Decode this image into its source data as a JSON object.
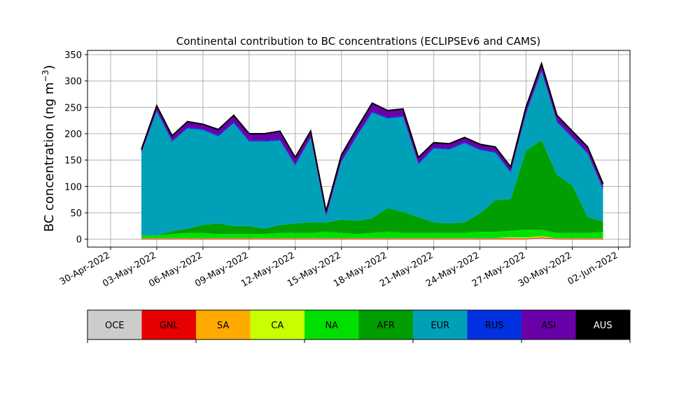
{
  "chart_data": {
    "type": "area",
    "stacked": true,
    "title": "Continental contribution to BC concentrations (ECLIPSEv6 and CAMS)",
    "xlabel": "",
    "ylabel": "BC concentration (ng m",
    "ylabel_superscript": "−3",
    "ylabel_close": ")",
    "ylim": [
      -15,
      358
    ],
    "xlim": [
      "2022-04-30",
      "2022-06-02"
    ],
    "grid": true,
    "x_ticks": [
      "30-Apr-2022",
      "03-May-2022",
      "06-May-2022",
      "09-May-2022",
      "12-May-2022",
      "15-May-2022",
      "18-May-2022",
      "21-May-2022",
      "24-May-2022",
      "27-May-2022",
      "30-May-2022",
      "02-Jun-2022"
    ],
    "y_ticks": [
      "0",
      "50",
      "100",
      "150",
      "200",
      "250",
      "300",
      "350"
    ],
    "y_tick_values": [
      0,
      50,
      100,
      150,
      200,
      250,
      300,
      350
    ],
    "legend_placement": "colorbar below chart",
    "x": [
      "2022-05-02",
      "2022-05-03",
      "2022-05-04",
      "2022-05-05",
      "2022-05-06",
      "2022-05-07",
      "2022-05-08",
      "2022-05-09",
      "2022-05-10",
      "2022-05-11",
      "2022-05-12",
      "2022-05-13",
      "2022-05-14",
      "2022-05-15",
      "2022-05-16",
      "2022-05-17",
      "2022-05-18",
      "2022-05-19",
      "2022-05-20",
      "2022-05-21",
      "2022-05-22",
      "2022-05-23",
      "2022-05-24",
      "2022-05-25",
      "2022-05-26",
      "2022-05-27",
      "2022-05-28",
      "2022-05-29",
      "2022-05-30",
      "2022-05-31",
      "2022-06-01"
    ],
    "series": [
      {
        "name": "OCE",
        "color": "#cccccc",
        "values": [
          0,
          0,
          0,
          0,
          0,
          0,
          0,
          0,
          0,
          0,
          0,
          0,
          0,
          0,
          0,
          0,
          0,
          0,
          0,
          0,
          0,
          0,
          0,
          0,
          0,
          0,
          2,
          0,
          0,
          0,
          0
        ]
      },
      {
        "name": "GNL",
        "color": "#e60000",
        "values": [
          1,
          1,
          1,
          1,
          1,
          1,
          1,
          1,
          1,
          1,
          1,
          1,
          1,
          1,
          1,
          1,
          1,
          1,
          1,
          1,
          1,
          1,
          1,
          1,
          1,
          1,
          1,
          1,
          1,
          1,
          1
        ]
      },
      {
        "name": "SA",
        "color": "#ffaa00",
        "values": [
          1,
          1,
          1,
          1,
          1,
          1,
          1,
          1,
          1,
          1,
          1,
          1,
          1,
          1,
          1,
          1,
          1,
          1,
          1,
          1,
          1,
          1,
          1,
          1,
          2,
          1,
          2,
          1,
          1,
          1,
          1
        ]
      },
      {
        "name": "CA",
        "color": "#c8ff00",
        "values": [
          0,
          0,
          0,
          0,
          0,
          0,
          0,
          0,
          0,
          0,
          0,
          0,
          0,
          0,
          0,
          0,
          0,
          0,
          0,
          0,
          0,
          0,
          0,
          0,
          1,
          1,
          1,
          0,
          0,
          0,
          0
        ]
      },
      {
        "name": "NA",
        "color": "#00e000",
        "values": [
          6,
          5,
          8,
          10,
          10,
          8,
          8,
          8,
          8,
          10,
          10,
          10,
          12,
          10,
          8,
          10,
          12,
          10,
          10,
          10,
          10,
          10,
          12,
          12,
          12,
          15,
          12,
          10,
          10,
          10,
          12
        ]
      },
      {
        "name": "AFR",
        "color": "#009e00",
        "values": [
          0,
          0,
          5,
          8,
          15,
          20,
          15,
          15,
          10,
          15,
          18,
          20,
          18,
          25,
          25,
          28,
          45,
          40,
          30,
          20,
          18,
          20,
          35,
          60,
          60,
          150,
          170,
          110,
          90,
          30,
          20
        ]
      },
      {
        "name": "EUR",
        "color": "#00a0b8",
        "values": [
          155,
          235,
          170,
          190,
          180,
          165,
          195,
          160,
          165,
          160,
          110,
          160,
          10,
          110,
          160,
          200,
          170,
          180,
          100,
          140,
          140,
          150,
          120,
          90,
          50,
          70,
          130,
          100,
          90,
          120,
          60
        ]
      },
      {
        "name": "RUS",
        "color": "#0030e0",
        "values": [
          1,
          2,
          2,
          2,
          2,
          2,
          2,
          2,
          2,
          2,
          2,
          2,
          2,
          2,
          2,
          2,
          2,
          2,
          2,
          2,
          2,
          2,
          2,
          2,
          2,
          2,
          2,
          2,
          2,
          2,
          2
        ]
      },
      {
        "name": "ASI",
        "color": "#6a00a8",
        "values": [
          5,
          8,
          8,
          10,
          8,
          10,
          12,
          12,
          12,
          15,
          12,
          10,
          8,
          10,
          12,
          15,
          12,
          12,
          10,
          8,
          8,
          8,
          8,
          8,
          8,
          10,
          12,
          10,
          10,
          10,
          8
        ]
      },
      {
        "name": "AUS",
        "color": "#000000",
        "values": [
          1,
          1,
          1,
          1,
          1,
          1,
          1,
          1,
          1,
          1,
          1,
          1,
          1,
          1,
          1,
          1,
          1,
          1,
          1,
          1,
          1,
          1,
          1,
          1,
          1,
          1,
          1,
          1,
          1,
          1,
          1
        ]
      }
    ]
  }
}
